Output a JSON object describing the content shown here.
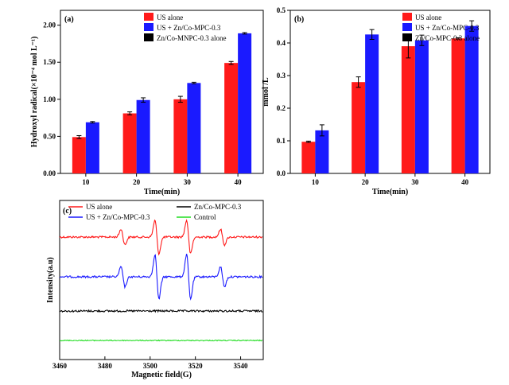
{
  "chart_data": [
    {
      "panel": "(a)",
      "type": "bar",
      "categories": [
        "10",
        "20",
        "30",
        "40"
      ],
      "xlabel": "Time(min)",
      "ylabel": "Hydroxyl radical(×10⁻⁴ mol L⁻¹)",
      "ylim": [
        0,
        2.2
      ],
      "yticks": [
        "0.00",
        "0.50",
        "1.00",
        "1.50",
        "2.00"
      ],
      "ytick_values": [
        0,
        0.5,
        1.0,
        1.5,
        2.0
      ],
      "legend": "top-left",
      "series": [
        {
          "name": "US alone",
          "color": "#ff1a1a",
          "values": [
            0.49,
            0.81,
            1.0,
            1.49
          ],
          "errors": [
            0.02,
            0.02,
            0.04,
            0.02
          ]
        },
        {
          "name": "US + Zn/Co-MPC-0.3",
          "color": "#1a1aff",
          "values": [
            0.69,
            0.99,
            1.22,
            1.89
          ],
          "errors": [
            0.01,
            0.03,
            0.01,
            0.01
          ]
        },
        {
          "name": "Zn/Co-MNPC-0.3 alone",
          "color": "#000000",
          "values": [
            0,
            0,
            0,
            0
          ],
          "errors": [
            0,
            0,
            0,
            0
          ]
        }
      ]
    },
    {
      "panel": "(b)",
      "type": "bar",
      "categories": [
        "10",
        "20",
        "30",
        "40"
      ],
      "xlabel": "Time(min)",
      "ylabel": "mmol /L",
      "ylim": [
        0,
        0.5
      ],
      "yticks": [
        "0.0",
        "0.1",
        "0.2",
        "0.3",
        "0.4",
        "0.5"
      ],
      "ytick_values": [
        0,
        0.1,
        0.2,
        0.3,
        0.4,
        0.5
      ],
      "legend": "top-right",
      "series": [
        {
          "name": "US alone",
          "color": "#ff1a1a",
          "values": [
            0.097,
            0.28,
            0.39,
            0.414
          ],
          "errors": [
            0.002,
            0.016,
            0.036,
            0.002
          ]
        },
        {
          "name": "US + Zn/Co-MPC-0.3",
          "color": "#1a1aff",
          "values": [
            0.132,
            0.426,
            0.408,
            0.452
          ],
          "errors": [
            0.017,
            0.015,
            0.016,
            0.016
          ]
        },
        {
          "name": "Zn/Co-MPC-0.3 alone",
          "color": "#000000",
          "values": [
            0,
            0,
            0,
            0
          ],
          "errors": [
            0,
            0,
            0,
            0
          ]
        }
      ]
    },
    {
      "panel": "(c)",
      "type": "line",
      "xlabel": "Magnetic field(G)",
      "ylabel": "Intensity(a.u)",
      "xlim": [
        3460,
        3550
      ],
      "xticks": [
        "3460",
        "3480",
        "3500",
        "3520",
        "3540"
      ],
      "xtick_values": [
        3460,
        3480,
        3500,
        3520,
        3540
      ],
      "legend": "top",
      "peak_positions": [
        3488,
        3503,
        3517,
        3532
      ],
      "series": [
        {
          "name": "US alone",
          "color": "#ff1a1a",
          "offset": 3.0,
          "peak_amplitudes": [
            0.35,
            0.75,
            0.75,
            0.35
          ]
        },
        {
          "name": "US + Zn/Co-MPC-0.3",
          "color": "#1a1aff",
          "offset": 1.8,
          "peak_amplitudes": [
            0.45,
            1.0,
            1.0,
            0.45
          ]
        },
        {
          "name": "Zn/Co-MPC-0.3",
          "color": "#000000",
          "offset": 0.8,
          "peak_amplitudes": [
            0,
            0,
            0,
            0
          ]
        },
        {
          "name": "Control",
          "color": "#22dd22",
          "offset": 0.0,
          "peak_amplitudes": [
            0,
            0,
            0,
            0
          ]
        }
      ]
    }
  ]
}
